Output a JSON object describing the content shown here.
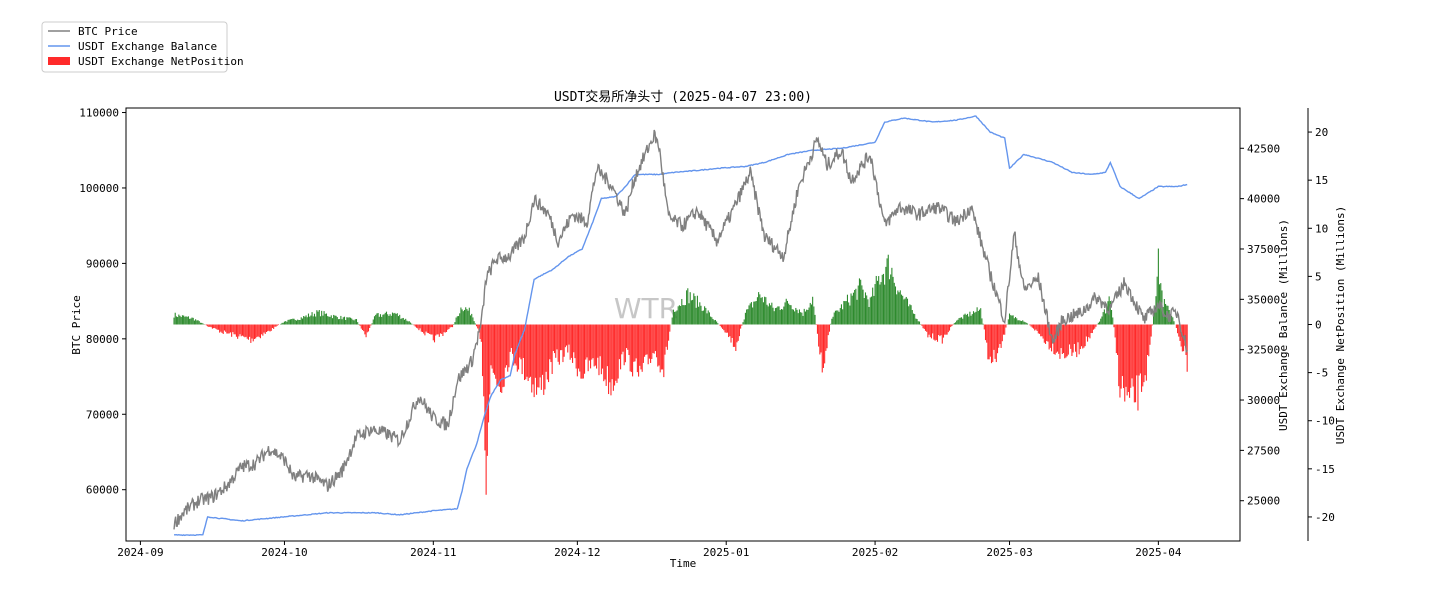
{
  "chart_data": {
    "type": "line",
    "title": "USDT交易所净头寸 (2025-04-07 23:00)",
    "watermark": "WTR",
    "xlabel": "Time",
    "ylabel_left": "BTC Price",
    "ylabel_right1": "USDT Exchange Balance (Millions)",
    "ylabel_right2": "USDT Exchange NetPosition (Millions)",
    "x_ticks": [
      "2024-09",
      "2024-10",
      "2024-11",
      "2024-12",
      "2025-01",
      "2025-02",
      "2025-03",
      "2025-04"
    ],
    "x_tick_dates": [
      "2024-09-01",
      "2024-10-01",
      "2024-11-01",
      "2024-12-01",
      "2025-01-01",
      "2025-02-01",
      "2025-03-01",
      "2025-04-01"
    ],
    "x_range": [
      "2024-08-29",
      "2025-04-18"
    ],
    "y_left_ticks": [
      "60000",
      "70000",
      "80000",
      "90000",
      "100000",
      "110000"
    ],
    "y_left_range": [
      53200,
      110600
    ],
    "y_right1_ticks": [
      "25000",
      "27500",
      "30000",
      "32500",
      "35000",
      "37500",
      "40000",
      "42500"
    ],
    "y_right1_range": [
      23000,
      44500
    ],
    "y_right2_ticks": [
      "-20",
      "-15",
      "-10",
      "-5",
      "0",
      "5",
      "10",
      "15",
      "20"
    ],
    "y_right2_range": [
      -22.5,
      22.5
    ],
    "legend": {
      "placement": "top-left",
      "items": [
        {
          "label": "BTC Price",
          "color": "#808080",
          "kind": "line"
        },
        {
          "label": "USDT Exchange Balance",
          "color": "#6495ED",
          "kind": "line"
        },
        {
          "label": "USDT Exchange NetPosition",
          "color": "#FF2A2A",
          "kind": "patch"
        }
      ]
    },
    "series": [
      {
        "name": "BTC Price",
        "axis": "left",
        "color": "#808080",
        "points": [
          [
            "2024-09-08",
            55500
          ],
          [
            "2024-09-10",
            57000
          ],
          [
            "2024-09-13",
            58500
          ],
          [
            "2024-09-16",
            59000
          ],
          [
            "2024-09-19",
            60500
          ],
          [
            "2024-09-22",
            63000
          ],
          [
            "2024-09-25",
            63500
          ],
          [
            "2024-09-28",
            65500
          ],
          [
            "2024-10-01",
            64000
          ],
          [
            "2024-10-03",
            61500
          ],
          [
            "2024-10-06",
            62000
          ],
          [
            "2024-10-10",
            60500
          ],
          [
            "2024-10-13",
            62500
          ],
          [
            "2024-10-16",
            67000
          ],
          [
            "2024-10-19",
            68000
          ],
          [
            "2024-10-22",
            67500
          ],
          [
            "2024-10-25",
            66500
          ],
          [
            "2024-10-29",
            72500
          ],
          [
            "2024-11-01",
            69500
          ],
          [
            "2024-11-04",
            68500
          ],
          [
            "2024-11-06",
            74500
          ],
          [
            "2024-11-09",
            77000
          ],
          [
            "2024-11-11",
            82000
          ],
          [
            "2024-11-12",
            88000
          ],
          [
            "2024-11-14",
            90500
          ],
          [
            "2024-11-17",
            91000
          ],
          [
            "2024-11-20",
            93500
          ],
          [
            "2024-11-22",
            98500
          ],
          [
            "2024-11-25",
            96500
          ],
          [
            "2024-11-27",
            93000
          ],
          [
            "2024-11-30",
            96500
          ],
          [
            "2024-12-03",
            95500
          ],
          [
            "2024-12-05",
            102500
          ],
          [
            "2024-12-08",
            100500
          ],
          [
            "2024-12-11",
            96500
          ],
          [
            "2024-12-13",
            101500
          ],
          [
            "2024-12-17",
            107000
          ],
          [
            "2024-12-18",
            105500
          ],
          [
            "2024-12-20",
            96000
          ],
          [
            "2024-12-23",
            95000
          ],
          [
            "2024-12-26",
            97000
          ],
          [
            "2024-12-30",
            93000
          ],
          [
            "2025-01-02",
            96500
          ],
          [
            "2025-01-06",
            102000
          ],
          [
            "2025-01-09",
            93500
          ],
          [
            "2025-01-13",
            91000
          ],
          [
            "2025-01-16",
            100000
          ],
          [
            "2025-01-20",
            106500
          ],
          [
            "2025-01-22",
            103000
          ],
          [
            "2025-01-25",
            105000
          ],
          [
            "2025-01-27",
            101000
          ],
          [
            "2025-01-31",
            104500
          ],
          [
            "2025-02-03",
            95000
          ],
          [
            "2025-02-06",
            97500
          ],
          [
            "2025-02-10",
            96500
          ],
          [
            "2025-02-14",
            97500
          ],
          [
            "2025-02-18",
            95500
          ],
          [
            "2025-02-21",
            97500
          ],
          [
            "2025-02-25",
            88500
          ],
          [
            "2025-02-28",
            82500
          ],
          [
            "2025-03-02",
            94000
          ],
          [
            "2025-03-04",
            86500
          ],
          [
            "2025-03-07",
            88000
          ],
          [
            "2025-03-10",
            79500
          ],
          [
            "2025-03-12",
            82500
          ],
          [
            "2025-03-16",
            83500
          ],
          [
            "2025-03-19",
            85500
          ],
          [
            "2025-03-22",
            84000
          ],
          [
            "2025-03-25",
            87500
          ],
          [
            "2025-03-29",
            82500
          ],
          [
            "2025-04-01",
            84500
          ],
          [
            "2025-04-03",
            83000
          ],
          [
            "2025-04-05",
            83500
          ],
          [
            "2025-04-07",
            78500
          ]
        ]
      },
      {
        "name": "USDT Exchange Balance",
        "axis": "right1",
        "color": "#6495ED",
        "points": [
          [
            "2024-09-08",
            23300
          ],
          [
            "2024-09-14",
            23300
          ],
          [
            "2024-09-15",
            24200
          ],
          [
            "2024-09-22",
            24000
          ],
          [
            "2024-10-01",
            24200
          ],
          [
            "2024-10-10",
            24400
          ],
          [
            "2024-10-20",
            24400
          ],
          [
            "2024-10-25",
            24300
          ],
          [
            "2024-11-01",
            24500
          ],
          [
            "2024-11-06",
            24600
          ],
          [
            "2024-11-07",
            25500
          ],
          [
            "2024-11-08",
            26600
          ],
          [
            "2024-11-10",
            27800
          ],
          [
            "2024-11-12",
            29500
          ],
          [
            "2024-11-13",
            30200
          ],
          [
            "2024-11-15",
            31000
          ],
          [
            "2024-11-17",
            31200
          ],
          [
            "2024-11-18",
            32300
          ],
          [
            "2024-11-20",
            33500
          ],
          [
            "2024-11-22",
            36000
          ],
          [
            "2024-11-26",
            36500
          ],
          [
            "2024-11-29",
            37100
          ],
          [
            "2024-12-02",
            37500
          ],
          [
            "2024-12-04",
            38700
          ],
          [
            "2024-12-06",
            40000
          ],
          [
            "2024-12-09",
            40100
          ],
          [
            "2024-12-11",
            40600
          ],
          [
            "2024-12-13",
            41200
          ],
          [
            "2024-12-18",
            41200
          ],
          [
            "2024-12-21",
            41300
          ],
          [
            "2024-12-26",
            41400
          ],
          [
            "2024-12-30",
            41500
          ],
          [
            "2025-01-05",
            41600
          ],
          [
            "2025-01-09",
            41800
          ],
          [
            "2025-01-14",
            42200
          ],
          [
            "2025-01-19",
            42400
          ],
          [
            "2025-01-25",
            42500
          ],
          [
            "2025-02-01",
            42800
          ],
          [
            "2025-02-03",
            43800
          ],
          [
            "2025-02-07",
            44000
          ],
          [
            "2025-02-13",
            43800
          ],
          [
            "2025-02-18",
            43900
          ],
          [
            "2025-02-22",
            44100
          ],
          [
            "2025-02-25",
            43300
          ],
          [
            "2025-02-28",
            43000
          ],
          [
            "2025-03-01",
            41500
          ],
          [
            "2025-03-04",
            42200
          ],
          [
            "2025-03-10",
            41800
          ],
          [
            "2025-03-14",
            41300
          ],
          [
            "2025-03-18",
            41200
          ],
          [
            "2025-03-21",
            41300
          ],
          [
            "2025-03-22",
            41800
          ],
          [
            "2025-03-24",
            40600
          ],
          [
            "2025-03-28",
            40000
          ],
          [
            "2025-04-01",
            40600
          ],
          [
            "2025-04-05",
            40600
          ],
          [
            "2025-04-07",
            40700
          ]
        ]
      },
      {
        "name": "USDT Exchange NetPosition",
        "axis": "right2",
        "color_positive": "#2E8B2E",
        "color_negative": "#FF2A2A",
        "points": [
          [
            "2024-09-08",
            1.3
          ],
          [
            "2024-09-12",
            0.8
          ],
          [
            "2024-09-15",
            -0.2
          ],
          [
            "2024-09-18",
            -1.0
          ],
          [
            "2024-09-21",
            -1.5
          ],
          [
            "2024-09-24",
            -2.0
          ],
          [
            "2024-09-27",
            -1.2
          ],
          [
            "2024-10-01",
            0.4
          ],
          [
            "2024-10-04",
            0.8
          ],
          [
            "2024-10-08",
            1.6
          ],
          [
            "2024-10-12",
            1.0
          ],
          [
            "2024-10-16",
            0.6
          ],
          [
            "2024-10-18",
            -1.5
          ],
          [
            "2024-10-20",
            1.2
          ],
          [
            "2024-10-24",
            1.5
          ],
          [
            "2024-10-27",
            0.4
          ],
          [
            "2024-10-29",
            -0.6
          ],
          [
            "2024-11-01",
            -2.0
          ],
          [
            "2024-11-03",
            -1.2
          ],
          [
            "2024-11-05",
            -0.3
          ],
          [
            "2024-11-07",
            2.5
          ],
          [
            "2024-11-09",
            1.5
          ],
          [
            "2024-11-11",
            -2.0
          ],
          [
            "2024-11-12",
            -18.0
          ],
          [
            "2024-11-13",
            -6.0
          ],
          [
            "2024-11-15",
            -8.0
          ],
          [
            "2024-11-17",
            -4.0
          ],
          [
            "2024-11-20",
            -6.0
          ],
          [
            "2024-11-23",
            -9.0
          ],
          [
            "2024-11-26",
            -5.0
          ],
          [
            "2024-11-29",
            -3.5
          ],
          [
            "2024-12-02",
            -6.5
          ],
          [
            "2024-12-05",
            -5.0
          ],
          [
            "2024-12-08",
            -8.0
          ],
          [
            "2024-12-11",
            -4.0
          ],
          [
            "2024-12-14",
            -7.0
          ],
          [
            "2024-12-17",
            -3.5
          ],
          [
            "2024-12-19",
            -6.0
          ],
          [
            "2024-12-21",
            2.0
          ],
          [
            "2024-12-24",
            4.0
          ],
          [
            "2024-12-27",
            2.5
          ],
          [
            "2024-12-29",
            1.0
          ],
          [
            "2025-01-01",
            -1.0
          ],
          [
            "2025-01-03",
            -3.0
          ],
          [
            "2025-01-05",
            1.5
          ],
          [
            "2025-01-08",
            4.0
          ],
          [
            "2025-01-11",
            2.0
          ],
          [
            "2025-01-14",
            3.0
          ],
          [
            "2025-01-17",
            1.5
          ],
          [
            "2025-01-19",
            3.5
          ],
          [
            "2025-01-21",
            -6.0
          ],
          [
            "2025-01-23",
            1.0
          ],
          [
            "2025-01-26",
            3.0
          ],
          [
            "2025-01-29",
            5.0
          ],
          [
            "2025-01-31",
            3.0
          ],
          [
            "2025-02-02",
            6.5
          ],
          [
            "2025-02-04",
            8.0
          ],
          [
            "2025-02-06",
            4.5
          ],
          [
            "2025-02-08",
            2.5
          ],
          [
            "2025-02-10",
            0.6
          ],
          [
            "2025-02-12",
            -1.5
          ],
          [
            "2025-02-15",
            -2.0
          ],
          [
            "2025-02-18",
            0.6
          ],
          [
            "2025-02-20",
            1.2
          ],
          [
            "2025-02-23",
            2.0
          ],
          [
            "2025-02-25",
            -5.5
          ],
          [
            "2025-02-27",
            -3.5
          ],
          [
            "2025-03-01",
            1.2
          ],
          [
            "2025-03-04",
            0.5
          ],
          [
            "2025-03-06",
            -0.5
          ],
          [
            "2025-03-09",
            -2.5
          ],
          [
            "2025-03-12",
            -4.0
          ],
          [
            "2025-03-15",
            -3.5
          ],
          [
            "2025-03-18",
            -1.5
          ],
          [
            "2025-03-21",
            2.0
          ],
          [
            "2025-03-22",
            4.0
          ],
          [
            "2025-03-24",
            -8.0
          ],
          [
            "2025-03-26",
            -10.5
          ],
          [
            "2025-03-28",
            -9.0
          ],
          [
            "2025-03-30",
            -5.0
          ],
          [
            "2025-04-01",
            8.0
          ],
          [
            "2025-04-02",
            3.0
          ],
          [
            "2025-04-04",
            1.0
          ],
          [
            "2025-04-06",
            -3.0
          ],
          [
            "2025-04-07",
            -5.0
          ]
        ]
      }
    ]
  }
}
